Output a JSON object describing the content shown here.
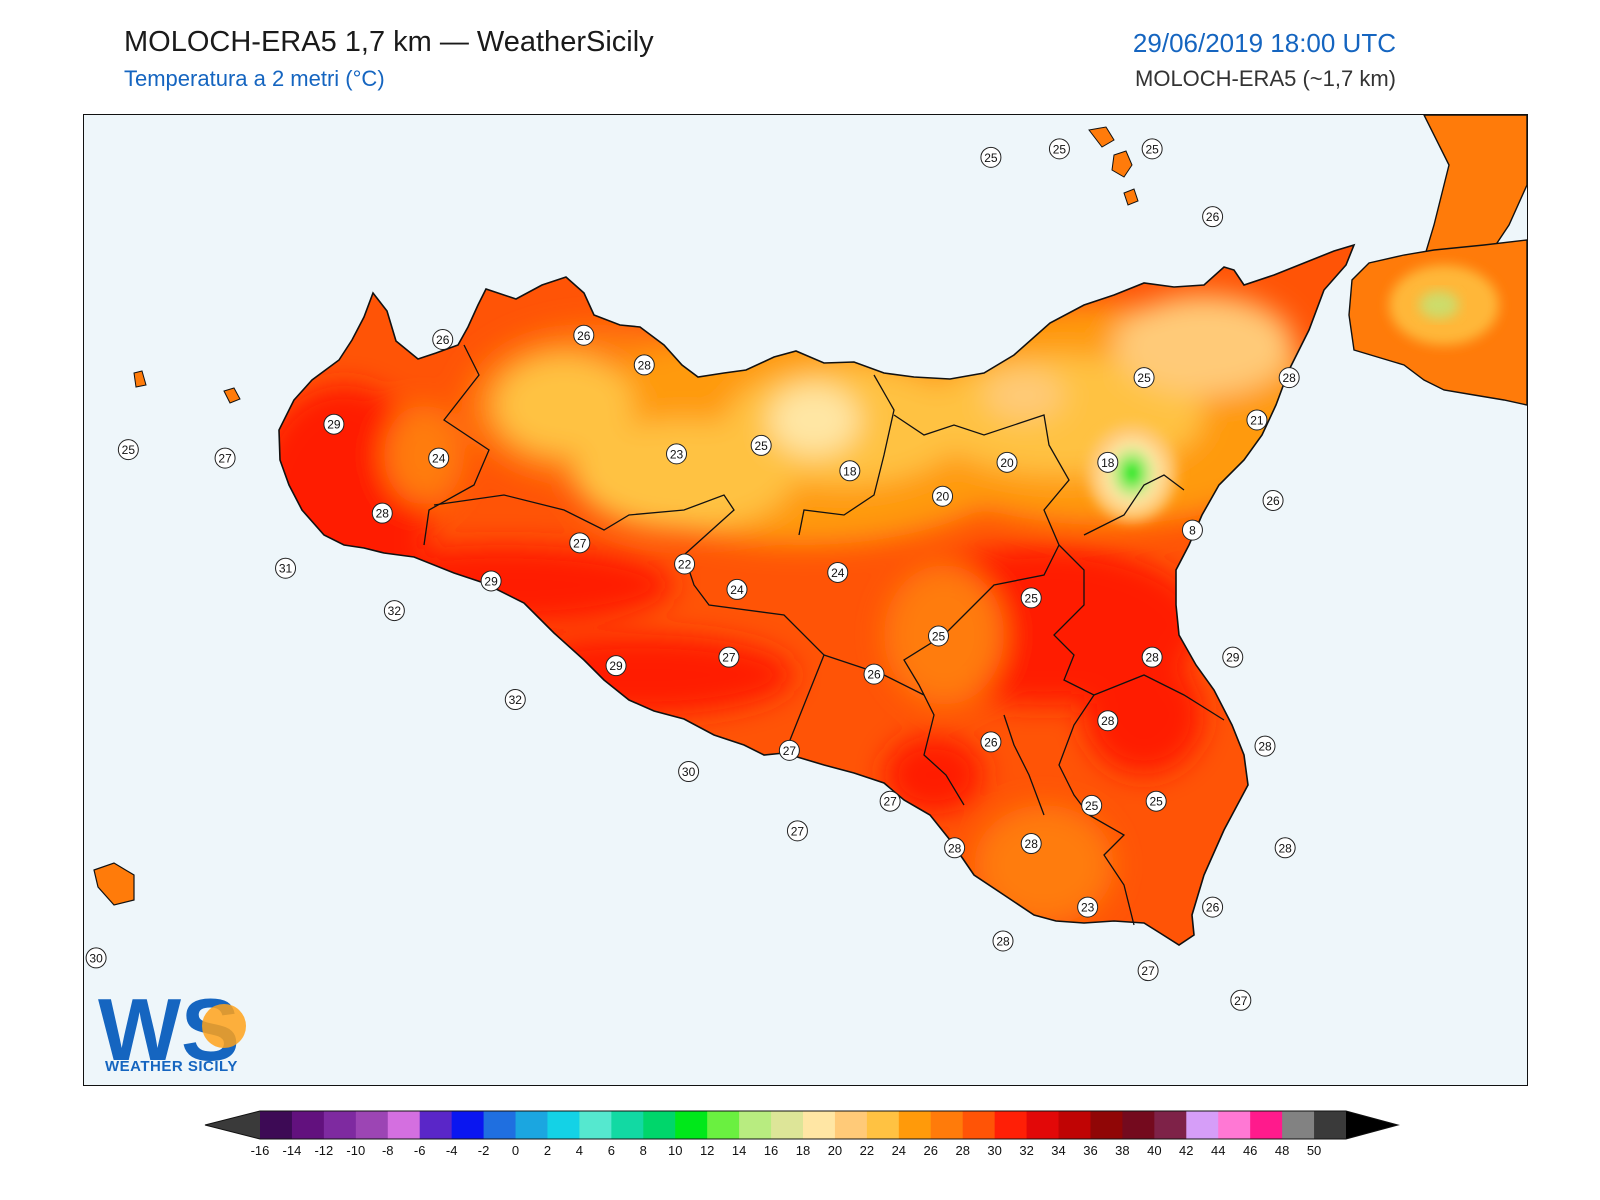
{
  "header": {
    "title": "MOLOCH-ERA5 1,7 km — WeatherSicily",
    "subtitle": "Temperatura a 2 metri (°C)",
    "datetime": "29/06/2019 18:00 UTC",
    "model": "MOLOCH-ERA5 (~1,7 km)"
  },
  "logo": {
    "letters": "WS",
    "name": "WEATHER SICILY"
  },
  "colors": {
    "sea": "#eef6fa",
    "accent_blue": "#1565c0"
  },
  "colorbar": {
    "ticks": [
      "-16",
      "-14",
      "-12",
      "-10",
      "-8",
      "-6",
      "-4",
      "-2",
      "0",
      "2",
      "4",
      "6",
      "8",
      "10",
      "12",
      "14",
      "16",
      "18",
      "20",
      "22",
      "24",
      "26",
      "28",
      "30",
      "32",
      "34",
      "36",
      "38",
      "40",
      "42",
      "44",
      "46",
      "48",
      "50"
    ],
    "colors": [
      "#3d0a55",
      "#62117e",
      "#7e2aa0",
      "#9c45b4",
      "#d46fe0",
      "#5a26c8",
      "#0a16f0",
      "#1f6fe0",
      "#1ba6e0",
      "#14d2e6",
      "#55e8cf",
      "#12d9a3",
      "#00d66b",
      "#00e81a",
      "#6af040",
      "#b8ec80",
      "#dde598",
      "#ffe6a4",
      "#ffca78",
      "#ffc242",
      "#ff9a0a",
      "#ff7b0a",
      "#ff5406",
      "#ff1f06",
      "#e20808",
      "#c00404",
      "#900606",
      "#740a1e",
      "#7e2248",
      "#d69ef8",
      "#ff78d4",
      "#ff1a8c",
      "#828282",
      "#3a3a3a"
    ]
  },
  "stations": [
    {
      "value": "25",
      "lon": 12.08,
      "lat": 37.95
    },
    {
      "value": "27",
      "lon": 12.32,
      "lat": 37.93
    },
    {
      "value": "29",
      "lon": 12.59,
      "lat": 38.01
    },
    {
      "value": "26",
      "lon": 12.86,
      "lat": 38.21
    },
    {
      "value": "26",
      "lon": 13.21,
      "lat": 38.22
    },
    {
      "value": "28",
      "lon": 13.36,
      "lat": 38.15
    },
    {
      "value": "24",
      "lon": 12.85,
      "lat": 37.93
    },
    {
      "value": "28",
      "lon": 12.71,
      "lat": 37.8
    },
    {
      "value": "31",
      "lon": 12.47,
      "lat": 37.67
    },
    {
      "value": "32",
      "lon": 12.74,
      "lat": 37.57
    },
    {
      "value": "29",
      "lon": 12.98,
      "lat": 37.64
    },
    {
      "value": "27",
      "lon": 13.2,
      "lat": 37.73
    },
    {
      "value": "22",
      "lon": 13.46,
      "lat": 37.68
    },
    {
      "value": "23",
      "lon": 13.44,
      "lat": 37.94
    },
    {
      "value": "25",
      "lon": 13.65,
      "lat": 37.96
    },
    {
      "value": "18",
      "lon": 13.87,
      "lat": 37.9
    },
    {
      "value": "20",
      "lon": 14.1,
      "lat": 37.84
    },
    {
      "value": "24",
      "lon": 13.59,
      "lat": 37.62
    },
    {
      "value": "24",
      "lon": 13.84,
      "lat": 37.66
    },
    {
      "value": "29",
      "lon": 13.29,
      "lat": 37.44
    },
    {
      "value": "27",
      "lon": 13.57,
      "lat": 37.46
    },
    {
      "value": "26",
      "lon": 13.93,
      "lat": 37.42
    },
    {
      "value": "32",
      "lon": 13.04,
      "lat": 37.36
    },
    {
      "value": "30",
      "lon": 13.47,
      "lat": 37.19
    },
    {
      "value": "27",
      "lon": 13.72,
      "lat": 37.24
    },
    {
      "value": "27",
      "lon": 13.97,
      "lat": 37.12
    },
    {
      "value": "27",
      "lon": 13.74,
      "lat": 37.05
    },
    {
      "value": "28",
      "lon": 14.13,
      "lat": 37.01
    },
    {
      "value": "25",
      "lon": 14.09,
      "lat": 37.51
    },
    {
      "value": "25",
      "lon": 14.32,
      "lat": 37.6
    },
    {
      "value": "20",
      "lon": 14.26,
      "lat": 37.92
    },
    {
      "value": "18",
      "lon": 14.51,
      "lat": 37.92
    },
    {
      "value": "25",
      "lon": 14.6,
      "lat": 38.12
    },
    {
      "value": "28",
      "lon": 14.96,
      "lat": 38.12
    },
    {
      "value": "21",
      "lon": 14.88,
      "lat": 38.02
    },
    {
      "value": "26",
      "lon": 14.92,
      "lat": 37.83
    },
    {
      "value": "8",
      "lon": 14.72,
      "lat": 37.76
    },
    {
      "value": "28",
      "lon": 14.62,
      "lat": 37.46
    },
    {
      "value": "29",
      "lon": 14.82,
      "lat": 37.46
    },
    {
      "value": "28",
      "lon": 14.51,
      "lat": 37.31
    },
    {
      "value": "26",
      "lon": 14.22,
      "lat": 37.26
    },
    {
      "value": "28",
      "lon": 14.9,
      "lat": 37.25
    },
    {
      "value": "25",
      "lon": 14.63,
      "lat": 37.12
    },
    {
      "value": "25",
      "lon": 14.47,
      "lat": 37.11
    },
    {
      "value": "28",
      "lon": 14.32,
      "lat": 37.02
    },
    {
      "value": "28",
      "lon": 14.95,
      "lat": 37.01
    },
    {
      "value": "23",
      "lon": 14.46,
      "lat": 36.87
    },
    {
      "value": "26",
      "lon": 14.77,
      "lat": 36.87
    },
    {
      "value": "28",
      "lon": 14.25,
      "lat": 36.79
    },
    {
      "value": "27",
      "lon": 14.61,
      "lat": 36.72
    },
    {
      "value": "27",
      "lon": 14.84,
      "lat": 36.65
    },
    {
      "value": "25",
      "lon": 14.22,
      "lat": 38.64
    },
    {
      "value": "25",
      "lon": 14.39,
      "lat": 38.66
    },
    {
      "value": "25",
      "lon": 14.62,
      "lat": 38.66
    },
    {
      "value": "26",
      "lon": 14.77,
      "lat": 38.5
    },
    {
      "value": "30",
      "lon": 12.0,
      "lat": 36.75
    }
  ]
}
